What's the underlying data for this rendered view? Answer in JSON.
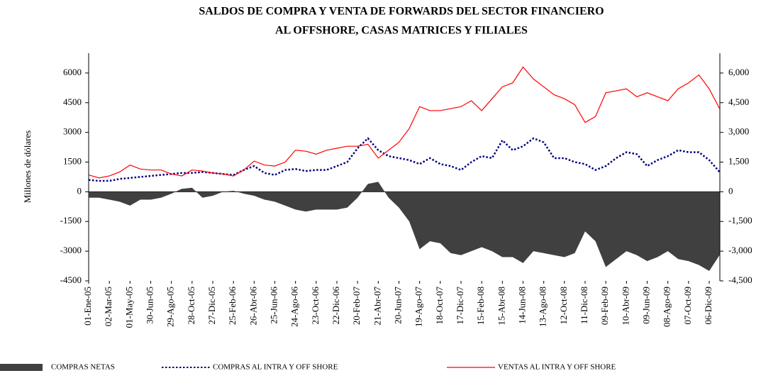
{
  "chart_data": {
    "type": "line",
    "title": [
      "SALDOS DE COMPRA Y VENTA DE FORWARDS DEL SECTOR FINANCIERO",
      "AL OFFSHORE, CASAS MATRICES Y FILIALES"
    ],
    "y_label": "Millones de dólares",
    "categories": [
      "01-Ene-05",
      null,
      "02-Mar-05",
      null,
      "01-May-05",
      null,
      "30-Jun-05",
      null,
      "29-Ago-05",
      null,
      "28-Oct-05",
      null,
      "27-Dic-05",
      null,
      "25-Feb-06",
      null,
      "26-Abr-06",
      null,
      "25-Jun-06",
      null,
      "24-Ago-06",
      null,
      "23-Oct-06",
      null,
      "22-Dic-06",
      null,
      "20-Feb-07",
      null,
      "21-Abr-07",
      null,
      "20-Jun-07",
      null,
      "19-Ago-07",
      null,
      "18-Oct-07",
      null,
      "17-Dic-07",
      null,
      "15-Feb-08",
      null,
      "15-Abr-08",
      null,
      "14-Jun-08",
      null,
      "13-Ago-08",
      null,
      "12-Oct-08",
      null,
      "11-Dic-08",
      null,
      "09-Feb-09",
      null,
      "10-Abr-09",
      null,
      "09-Jun-09",
      null,
      "08-Ago-09",
      null,
      "07-Oct-09",
      null,
      "06-Dic-09",
      null
    ],
    "series": [
      {
        "name": "COMPRAS NETAS",
        "color": "#404040",
        "style": "area",
        "values": [
          -300,
          -300,
          -400,
          -500,
          -700,
          -400,
          -400,
          -300,
          -100,
          150,
          200,
          -300,
          -200,
          0,
          50,
          -100,
          -200,
          -400,
          -500,
          -700,
          -900,
          -1000,
          -900,
          -900,
          -900,
          -800,
          -300,
          400,
          500,
          -300,
          -800,
          -1500,
          -2900,
          -2500,
          -2600,
          -3100,
          -3200,
          -3000,
          -2800,
          -3000,
          -3300,
          -3300,
          -3600,
          -3000,
          -3100,
          -3200,
          -3300,
          -3100,
          -2000,
          -2500,
          -3800,
          -3400,
          -3000,
          -3200,
          -3500,
          -3300,
          -3000,
          -3400,
          -3500,
          -3700,
          -4000,
          -3200
        ]
      },
      {
        "name": "COMPRAS AL INTRA Y OFF SHORE",
        "color": "#000080",
        "style": "dotted",
        "values": [
          600,
          550,
          550,
          650,
          700,
          750,
          800,
          850,
          900,
          950,
          950,
          1000,
          950,
          900,
          850,
          1100,
          1300,
          950,
          850,
          1100,
          1150,
          1050,
          1100,
          1100,
          1300,
          1500,
          2200,
          2700,
          2100,
          1800,
          1700,
          1600,
          1400,
          1700,
          1400,
          1300,
          1100,
          1500,
          1800,
          1700,
          2600,
          2100,
          2300,
          2700,
          2500,
          1700,
          1700,
          1500,
          1400,
          1100,
          1300,
          1700,
          2000,
          1900,
          1300,
          1600,
          1800,
          2100,
          2000,
          2000,
          1600,
          1000
        ]
      },
      {
        "name": "VENTAS AL INTRA Y OFF SHORE",
        "color": "#ff0000",
        "style": "solid",
        "values": [
          850,
          700,
          800,
          1000,
          1350,
          1150,
          1100,
          1100,
          900,
          800,
          1100,
          1050,
          950,
          900,
          800,
          1100,
          1550,
          1350,
          1300,
          1500,
          2100,
          2050,
          1900,
          2100,
          2200,
          2300,
          2300,
          2400,
          1700,
          2100,
          2500,
          3200,
          4300,
          4100,
          4100,
          4200,
          4300,
          4600,
          4100,
          4700,
          5300,
          5500,
          6300,
          5700,
          5300,
          4900,
          4700,
          4400,
          3500,
          3800,
          5000,
          5100,
          5200,
          4800,
          5000,
          4800,
          4600,
          5200,
          5500,
          5900,
          5200,
          4200
        ]
      }
    ],
    "ylim": [
      -4500,
      7000
    ],
    "yticks": [
      -4500,
      -3000,
      -1500,
      0,
      1500,
      3000,
      4500,
      6000
    ],
    "y2lim": [
      -4500,
      7000
    ],
    "y2ticks": [
      {
        "value": -4500,
        "label": "-4,500"
      },
      {
        "value": -3000,
        "label": "-3,000"
      },
      {
        "value": -1500,
        "label": "-1,500"
      },
      0,
      {
        "value": 1500,
        "label": "1,500"
      },
      {
        "value": 3000,
        "label": "3,000"
      },
      {
        "value": 4500,
        "label": "4,500"
      },
      {
        "value": 6000,
        "label": "6,000"
      }
    ],
    "legend": "bottom"
  }
}
